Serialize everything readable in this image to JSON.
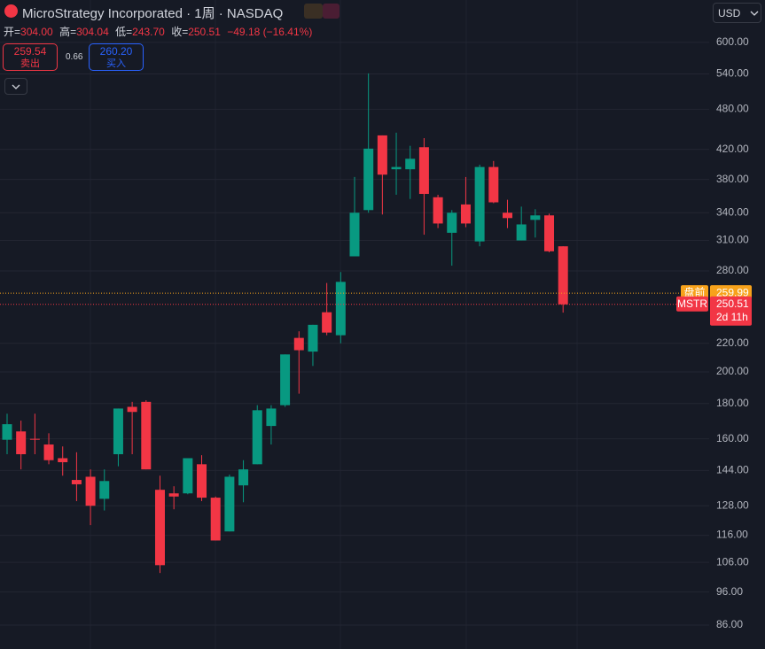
{
  "header": {
    "title": "MicroStrategy Incorporated · 1周 · NASDAQ",
    "ohlc": [
      {
        "label": "开=",
        "value": "304.00"
      },
      {
        "label": "高=",
        "value": "304.04"
      },
      {
        "label": "低=",
        "value": "243.70"
      },
      {
        "label": "收=",
        "value": "250.51"
      }
    ],
    "change": "−49.18 (−16.41%)",
    "sell": {
      "price": "259.54",
      "label": "卖出"
    },
    "spread": "0.66",
    "buy": {
      "price": "260.20",
      "label": "买入"
    },
    "currency": "USD"
  },
  "chart_data": {
    "type": "candlestick",
    "log_scale": true,
    "grid": true,
    "up_color": "#089981",
    "down_color": "#f23645",
    "ylim": [
      79.4,
      691
    ],
    "yticks": [
      {
        "value": 600,
        "label": "600.00"
      },
      {
        "value": 540,
        "label": "540.00"
      },
      {
        "value": 480,
        "label": "480.00"
      },
      {
        "value": 420,
        "label": "420.00"
      },
      {
        "value": 380,
        "label": "380.00"
      },
      {
        "value": 340,
        "label": "340.00"
      },
      {
        "value": 310,
        "label": "310.00"
      },
      {
        "value": 280,
        "label": "280.00"
      },
      {
        "value": 220,
        "label": "220.00"
      },
      {
        "value": 200,
        "label": "200.00"
      },
      {
        "value": 180,
        "label": "180.00"
      },
      {
        "value": 160,
        "label": "160.00"
      },
      {
        "value": 144,
        "label": "144.00"
      },
      {
        "value": 128,
        "label": "128.00"
      },
      {
        "value": 116,
        "label": "116.00"
      },
      {
        "value": 106,
        "label": "106.00"
      },
      {
        "value": 96,
        "label": "96.00"
      },
      {
        "value": 86,
        "label": "86.00"
      }
    ],
    "open": [
      159.5,
      164,
      160,
      157,
      150,
      139.5,
      141,
      131,
      152,
      178,
      181,
      135,
      133.4,
      133.4,
      147,
      131.5,
      117.5,
      137,
      147,
      167,
      179,
      224,
      214,
      244,
      226,
      294,
      343,
      440,
      393,
      393,
      423,
      358,
      318,
      349.5,
      309,
      396,
      340,
      310,
      332,
      337,
      304.0
    ],
    "high": [
      174,
      170,
      174,
      163,
      156,
      153,
      144.5,
      144.5,
      177,
      181,
      182,
      141.5,
      136.6,
      150,
      151.5,
      132,
      142,
      149,
      179,
      179,
      212,
      229,
      234,
      269,
      279,
      383,
      541,
      440,
      444,
      425,
      436,
      361,
      343,
      383,
      399,
      404,
      355,
      347,
      344,
      339,
      304.04
    ],
    "low": [
      152,
      144.5,
      152,
      147,
      141.5,
      130,
      120,
      126,
      146,
      152,
      144.5,
      102.3,
      126.5,
      133,
      130,
      114,
      117.5,
      129.5,
      147,
      157,
      178,
      186,
      204,
      226,
      220,
      294,
      340,
      338,
      361,
      356,
      316,
      323,
      285,
      324,
      304,
      351,
      323,
      310,
      313,
      298,
      243.7
    ],
    "close": [
      168,
      152,
      159.5,
      149,
      148,
      137.5,
      128,
      139,
      177,
      175,
      144.5,
      105,
      132,
      150,
      131.5,
      114,
      141,
      144.5,
      176,
      177,
      212,
      215,
      234,
      228,
      270,
      340,
      421,
      386,
      396,
      407,
      362,
      328,
      340,
      328,
      396,
      352,
      334,
      327,
      337,
      299,
      250.51
    ],
    "price_lines": [
      {
        "label": "盘前",
        "value": 259.99,
        "color": "#f7a21b"
      },
      {
        "label": "MSTR",
        "value": 250.51,
        "color": "#f23645",
        "countdown": "2d 11h"
      }
    ]
  }
}
